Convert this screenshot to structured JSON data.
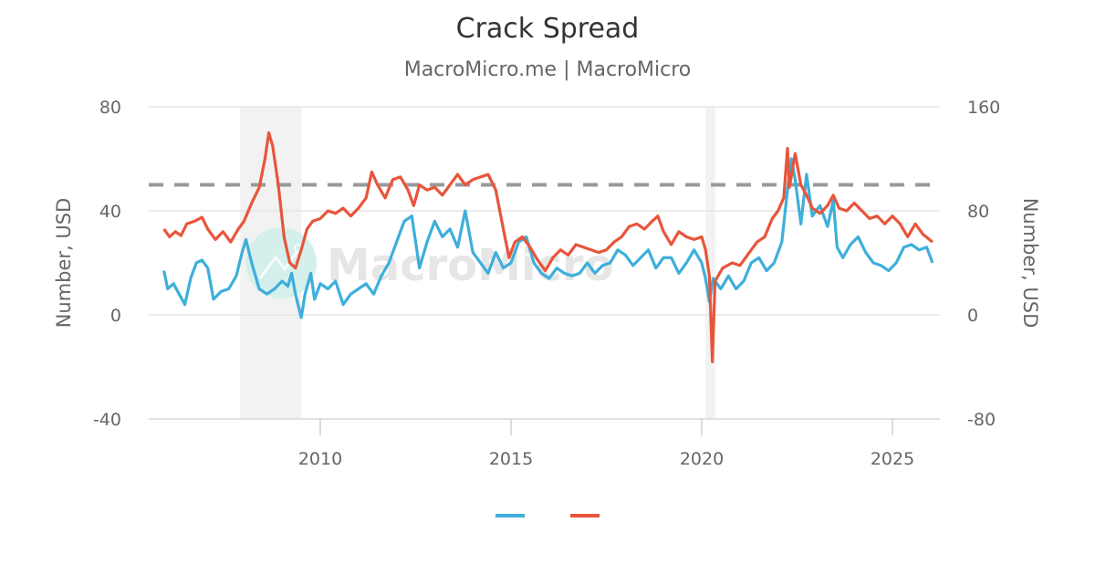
{
  "header": {
    "title": "Crack Spread",
    "subtitle": "MacroMicro.me | MacroMicro"
  },
  "watermark": {
    "text": "MacroMicro",
    "icon": "macromicro-logo-icon"
  },
  "colors": {
    "series_blue": "#3dafda",
    "series_red": "#e8553b",
    "reference_line": "#999999",
    "recession_band": "#f2f2f2",
    "grid": "#e6e6e6",
    "text": "#666666",
    "title": "#333333"
  },
  "chart_data": {
    "type": "line",
    "title": "Crack Spread",
    "subtitle": "MacroMicro.me | MacroMicro",
    "xlabel": "",
    "ylabel": "Number, USD",
    "ylabel_right": "Number, USD",
    "x_ticks": [
      "2010",
      "2015",
      "2020",
      "2025"
    ],
    "y_ticks_left": [
      "80",
      "40",
      "0",
      "-40"
    ],
    "y_ticks_right": [
      "160",
      "80",
      "0",
      "-80"
    ],
    "ylim_left": [
      -40,
      80
    ],
    "ylim_right": [
      -80,
      160
    ],
    "xlim": [
      2005.5,
      2026.3
    ],
    "grid": true,
    "legend_position": "bottom",
    "reference_line": {
      "axis": "left",
      "value": 50,
      "style": "dashed"
    },
    "shaded_regions": [
      {
        "from": 2007.9,
        "to": 2009.5,
        "label": "recession"
      },
      {
        "from": 2020.1,
        "to": 2020.35,
        "label": "recession"
      }
    ],
    "series": [
      {
        "name": "",
        "axis": "left",
        "color": "#3dafda",
        "points": [
          [
            2005.9,
            17
          ],
          [
            2006.0,
            10
          ],
          [
            2006.15,
            12
          ],
          [
            2006.3,
            8
          ],
          [
            2006.45,
            4
          ],
          [
            2006.6,
            14
          ],
          [
            2006.75,
            20
          ],
          [
            2006.9,
            21
          ],
          [
            2007.05,
            18
          ],
          [
            2007.2,
            6
          ],
          [
            2007.4,
            9
          ],
          [
            2007.6,
            10
          ],
          [
            2007.8,
            15
          ],
          [
            2007.95,
            24
          ],
          [
            2008.05,
            29
          ],
          [
            2008.2,
            20
          ],
          [
            2008.4,
            10
          ],
          [
            2008.6,
            8
          ],
          [
            2008.8,
            10
          ],
          [
            2009.0,
            13
          ],
          [
            2009.15,
            11
          ],
          [
            2009.25,
            16
          ],
          [
            2009.35,
            8
          ],
          [
            2009.5,
            -1
          ],
          [
            2009.6,
            8
          ],
          [
            2009.75,
            16
          ],
          [
            2009.85,
            6
          ],
          [
            2010.0,
            12
          ],
          [
            2010.2,
            10
          ],
          [
            2010.4,
            13
          ],
          [
            2010.6,
            4
          ],
          [
            2010.8,
            8
          ],
          [
            2011.0,
            10
          ],
          [
            2011.2,
            12
          ],
          [
            2011.4,
            8
          ],
          [
            2011.6,
            15
          ],
          [
            2011.8,
            20
          ],
          [
            2012.0,
            28
          ],
          [
            2012.2,
            36
          ],
          [
            2012.4,
            38
          ],
          [
            2012.6,
            18
          ],
          [
            2012.8,
            28
          ],
          [
            2013.0,
            36
          ],
          [
            2013.2,
            30
          ],
          [
            2013.4,
            33
          ],
          [
            2013.6,
            26
          ],
          [
            2013.8,
            40
          ],
          [
            2014.0,
            24
          ],
          [
            2014.2,
            20
          ],
          [
            2014.4,
            16
          ],
          [
            2014.6,
            24
          ],
          [
            2014.8,
            18
          ],
          [
            2015.0,
            20
          ],
          [
            2015.2,
            28
          ],
          [
            2015.4,
            30
          ],
          [
            2015.6,
            20
          ],
          [
            2015.8,
            16
          ],
          [
            2016.0,
            14
          ],
          [
            2016.2,
            18
          ],
          [
            2016.4,
            16
          ],
          [
            2016.6,
            15
          ],
          [
            2016.8,
            16
          ],
          [
            2017.0,
            20
          ],
          [
            2017.2,
            16
          ],
          [
            2017.4,
            19
          ],
          [
            2017.6,
            20
          ],
          [
            2017.8,
            25
          ],
          [
            2018.0,
            23
          ],
          [
            2018.2,
            19
          ],
          [
            2018.4,
            22
          ],
          [
            2018.6,
            25
          ],
          [
            2018.8,
            18
          ],
          [
            2019.0,
            22
          ],
          [
            2019.2,
            22
          ],
          [
            2019.4,
            16
          ],
          [
            2019.6,
            20
          ],
          [
            2019.8,
            25
          ],
          [
            2020.0,
            20
          ],
          [
            2020.1,
            14
          ],
          [
            2020.2,
            5
          ],
          [
            2020.3,
            14
          ],
          [
            2020.5,
            10
          ],
          [
            2020.7,
            15
          ],
          [
            2020.9,
            10
          ],
          [
            2021.1,
            13
          ],
          [
            2021.3,
            20
          ],
          [
            2021.5,
            22
          ],
          [
            2021.7,
            17
          ],
          [
            2021.9,
            20
          ],
          [
            2022.1,
            28
          ],
          [
            2022.25,
            48
          ],
          [
            2022.35,
            60
          ],
          [
            2022.45,
            52
          ],
          [
            2022.6,
            35
          ],
          [
            2022.75,
            54
          ],
          [
            2022.9,
            38
          ],
          [
            2023.1,
            42
          ],
          [
            2023.3,
            34
          ],
          [
            2023.45,
            44
          ],
          [
            2023.55,
            26
          ],
          [
            2023.7,
            22
          ],
          [
            2023.9,
            27
          ],
          [
            2024.1,
            30
          ],
          [
            2024.3,
            24
          ],
          [
            2024.5,
            20
          ],
          [
            2024.7,
            19
          ],
          [
            2024.9,
            17
          ],
          [
            2025.1,
            20
          ],
          [
            2025.3,
            26
          ],
          [
            2025.5,
            27
          ],
          [
            2025.7,
            25
          ],
          [
            2025.9,
            26
          ],
          [
            2026.05,
            20
          ]
        ]
      },
      {
        "name": "",
        "axis": "right",
        "color": "#e8553b",
        "points": [
          [
            2005.9,
            66
          ],
          [
            2006.05,
            60
          ],
          [
            2006.2,
            64
          ],
          [
            2006.35,
            61
          ],
          [
            2006.5,
            70
          ],
          [
            2006.7,
            72
          ],
          [
            2006.9,
            75
          ],
          [
            2007.05,
            66
          ],
          [
            2007.25,
            58
          ],
          [
            2007.45,
            64
          ],
          [
            2007.65,
            56
          ],
          [
            2007.85,
            66
          ],
          [
            2008.0,
            72
          ],
          [
            2008.2,
            86
          ],
          [
            2008.4,
            98
          ],
          [
            2008.55,
            120
          ],
          [
            2008.65,
            140
          ],
          [
            2008.75,
            130
          ],
          [
            2008.9,
            100
          ],
          [
            2009.05,
            60
          ],
          [
            2009.2,
            40
          ],
          [
            2009.35,
            36
          ],
          [
            2009.5,
            50
          ],
          [
            2009.65,
            66
          ],
          [
            2009.8,
            72
          ],
          [
            2010.0,
            74
          ],
          [
            2010.2,
            80
          ],
          [
            2010.4,
            78
          ],
          [
            2010.6,
            82
          ],
          [
            2010.8,
            76
          ],
          [
            2011.0,
            82
          ],
          [
            2011.2,
            90
          ],
          [
            2011.35,
            110
          ],
          [
            2011.5,
            100
          ],
          [
            2011.7,
            90
          ],
          [
            2011.9,
            104
          ],
          [
            2012.1,
            106
          ],
          [
            2012.3,
            96
          ],
          [
            2012.45,
            84
          ],
          [
            2012.6,
            100
          ],
          [
            2012.8,
            96
          ],
          [
            2013.0,
            98
          ],
          [
            2013.2,
            92
          ],
          [
            2013.4,
            100
          ],
          [
            2013.6,
            108
          ],
          [
            2013.8,
            100
          ],
          [
            2014.0,
            104
          ],
          [
            2014.2,
            106
          ],
          [
            2014.4,
            108
          ],
          [
            2014.6,
            96
          ],
          [
            2014.8,
            66
          ],
          [
            2014.95,
            44
          ],
          [
            2015.1,
            56
          ],
          [
            2015.3,
            60
          ],
          [
            2015.5,
            52
          ],
          [
            2015.7,
            42
          ],
          [
            2015.9,
            34
          ],
          [
            2016.1,
            44
          ],
          [
            2016.3,
            50
          ],
          [
            2016.5,
            46
          ],
          [
            2016.7,
            54
          ],
          [
            2016.9,
            52
          ],
          [
            2017.1,
            50
          ],
          [
            2017.3,
            48
          ],
          [
            2017.5,
            50
          ],
          [
            2017.7,
            56
          ],
          [
            2017.9,
            60
          ],
          [
            2018.1,
            68
          ],
          [
            2018.3,
            70
          ],
          [
            2018.5,
            66
          ],
          [
            2018.7,
            72
          ],
          [
            2018.85,
            76
          ],
          [
            2019.0,
            64
          ],
          [
            2019.2,
            54
          ],
          [
            2019.4,
            64
          ],
          [
            2019.6,
            60
          ],
          [
            2019.8,
            58
          ],
          [
            2020.0,
            60
          ],
          [
            2020.1,
            50
          ],
          [
            2020.2,
            30
          ],
          [
            2020.28,
            -36
          ],
          [
            2020.35,
            26
          ],
          [
            2020.55,
            36
          ],
          [
            2020.8,
            40
          ],
          [
            2021.0,
            38
          ],
          [
            2021.2,
            46
          ],
          [
            2021.45,
            56
          ],
          [
            2021.65,
            60
          ],
          [
            2021.85,
            74
          ],
          [
            2022.0,
            80
          ],
          [
            2022.15,
            90
          ],
          [
            2022.25,
            128
          ],
          [
            2022.3,
            98
          ],
          [
            2022.45,
            124
          ],
          [
            2022.6,
            100
          ],
          [
            2022.75,
            92
          ],
          [
            2022.9,
            82
          ],
          [
            2023.1,
            78
          ],
          [
            2023.3,
            84
          ],
          [
            2023.45,
            92
          ],
          [
            2023.6,
            82
          ],
          [
            2023.8,
            80
          ],
          [
            2024.0,
            86
          ],
          [
            2024.2,
            80
          ],
          [
            2024.4,
            74
          ],
          [
            2024.6,
            76
          ],
          [
            2024.8,
            70
          ],
          [
            2025.0,
            76
          ],
          [
            2025.2,
            70
          ],
          [
            2025.4,
            60
          ],
          [
            2025.6,
            70
          ],
          [
            2025.8,
            62
          ],
          [
            2026.05,
            56
          ]
        ]
      }
    ]
  },
  "legend": {
    "items": [
      {
        "label": "",
        "color": "#3dafda"
      },
      {
        "label": "",
        "color": "#e8553b"
      }
    ]
  }
}
